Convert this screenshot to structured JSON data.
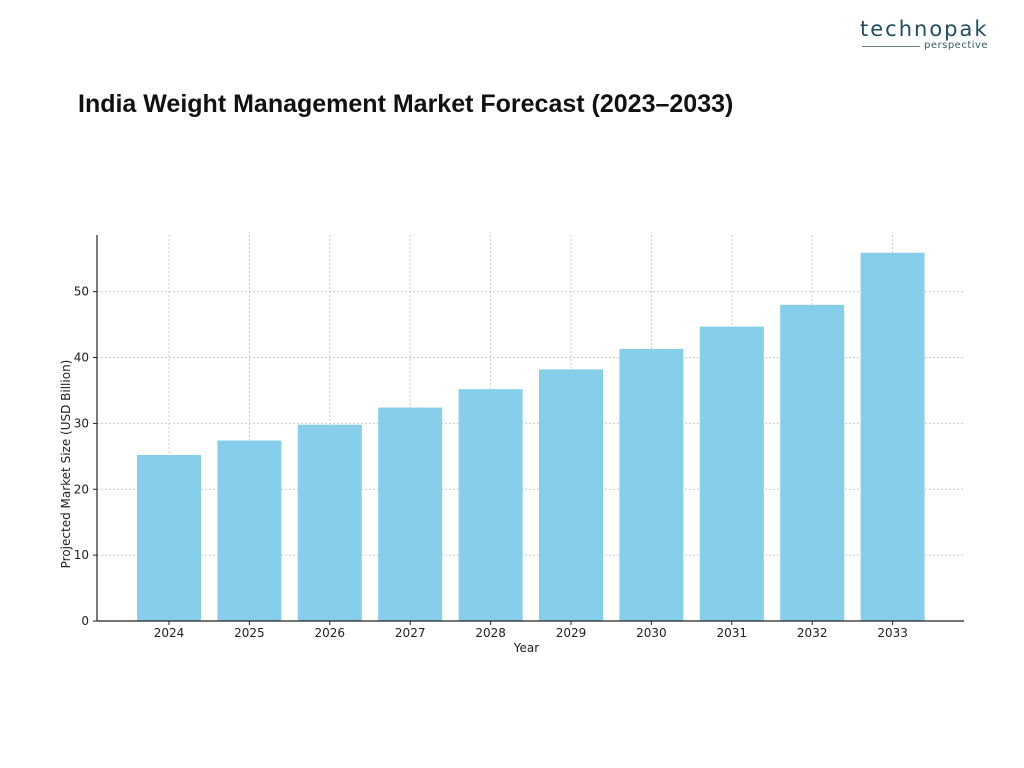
{
  "brand": {
    "name": "technopak",
    "tagline": "perspective"
  },
  "chart_data": {
    "type": "bar",
    "title": "India Weight Management Market Forecast (2023–2033)",
    "xlabel": "Year",
    "ylabel": "Projected Market Size (USD Billion)",
    "categories": [
      "2024",
      "2025",
      "2026",
      "2027",
      "2028",
      "2029",
      "2030",
      "2031",
      "2032",
      "2033"
    ],
    "values": [
      25.2,
      27.4,
      29.8,
      32.4,
      35.2,
      38.2,
      41.3,
      44.7,
      48.0,
      55.9
    ],
    "ylim": [
      0,
      58.6
    ],
    "yticks": [
      0,
      10,
      20,
      30,
      40,
      50
    ],
    "grid": true,
    "bar_color": "#87ceeb"
  }
}
